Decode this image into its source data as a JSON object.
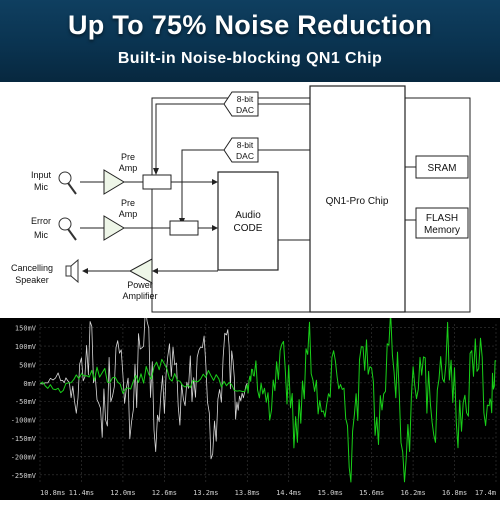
{
  "header": {
    "title": "Up To 75% Noise Reduction",
    "subtitle": "Built-in Noise-blocking QN1 Chip"
  },
  "diagram": {
    "input_mic": [
      "Input",
      "Mic"
    ],
    "error_mic": [
      "Error",
      "Mic"
    ],
    "speaker": [
      "Cancelling",
      "Speaker"
    ],
    "preamp_1": [
      "Pre",
      "Amp"
    ],
    "preamp_2": [
      "Pre",
      "Amp"
    ],
    "power_amp": [
      "Power",
      "Amplifier"
    ],
    "dac_1": [
      "8-bit",
      "DAC"
    ],
    "dac_2": [
      "8-bit",
      "DAC"
    ],
    "audio_codec": [
      "Audio",
      "CODE"
    ],
    "chip": "QN1-Pro Chip",
    "sram": "SRAM",
    "flash": [
      "FLASH",
      "Memory"
    ]
  },
  "chart_data": {
    "type": "line",
    "x_ticks": [
      "10.8ms",
      "11.4ms",
      "12.0ms",
      "12.6ms",
      "13.2ms",
      "13.8ms",
      "14.4ms",
      "15.0ms",
      "15.6ms",
      "16.2ms",
      "16.8ms",
      "17.4m"
    ],
    "y_ticks": [
      "150mV",
      "100mV",
      "50mV",
      "0mV",
      "-50mV",
      "-100mV",
      "-150mV",
      "-200mV",
      "-250mV"
    ],
    "xlim": [
      10.8,
      17.4
    ],
    "ylim": [
      -275,
      160
    ],
    "grid": true,
    "series": [
      {
        "color": "#d8d8d8",
        "x": [
          10.8,
          11.1,
          11.3,
          11.5,
          11.7,
          11.9,
          12.1,
          12.3,
          12.5,
          12.7,
          12.9,
          13.1,
          13.3,
          13.5,
          13.65,
          13.8
        ],
        "y": [
          0,
          25,
          -40,
          120,
          -110,
          90,
          -85,
          130,
          -130,
          85,
          -120,
          140,
          -150,
          95,
          -60,
          0
        ]
      },
      {
        "color": "#19d019",
        "x": [
          10.8,
          11.1,
          11.4,
          11.7,
          12.0,
          12.3,
          12.6,
          12.9,
          13.2,
          13.5,
          13.8,
          13.9,
          14.1,
          14.3,
          14.5,
          14.7,
          14.9,
          15.1,
          15.3,
          15.5,
          15.7,
          15.9,
          16.1,
          16.3,
          16.5,
          16.7,
          16.9,
          17.1,
          17.3,
          17.4
        ],
        "y": [
          0,
          -20,
          15,
          30,
          -15,
          20,
          45,
          -10,
          25,
          -5,
          -20,
          40,
          -90,
          110,
          -140,
          125,
          -110,
          95,
          -185,
          120,
          -150,
          140,
          -215,
          130,
          -150,
          125,
          -160,
          135,
          -100,
          60
        ]
      }
    ]
  }
}
